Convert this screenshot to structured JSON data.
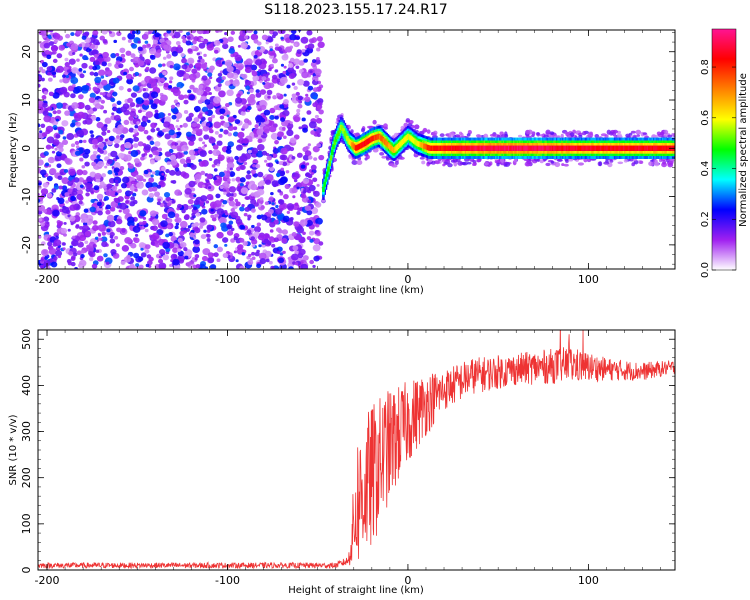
{
  "figure": {
    "title": "S118.2023.155.17.24.R17"
  },
  "chart_data": [
    {
      "type": "heatmap",
      "xlabel": "Height of straight line (km)",
      "ylabel": "Frequency (Hz)",
      "xlim": [
        -205,
        148
      ],
      "ylim": [
        -25,
        24.5
      ],
      "x_ticks": [
        -200,
        -100,
        0,
        100
      ],
      "y_ticks": [
        -20,
        -10,
        0,
        10,
        20
      ],
      "grid": false,
      "colorbar": {
        "label": "Normalized spectral amplitude",
        "range": [
          0,
          0.95
        ],
        "ticks": [
          "0.0",
          "0.2",
          "0.4",
          "0.6",
          "0.8"
        ],
        "tick_values": [
          0.0,
          0.2,
          0.4,
          0.6,
          0.8
        ],
        "colormap": [
          "#ffffff",
          "#a020f0",
          "#0000ff",
          "#00ffff",
          "#00ff00",
          "#ffff00",
          "#ff8000",
          "#ff0000",
          "#ff1493"
        ]
      },
      "regions": [
        {
          "x_range": [
            -205,
            -48
          ],
          "description_value": 0.2
        },
        {
          "x_range": [
            -48,
            148
          ],
          "center_frequency": 0.3
        }
      ],
      "ridge": [
        {
          "x": -47,
          "y": -8.5,
          "v": 0.45
        },
        {
          "x": -44,
          "y": -4.0,
          "v": 0.5
        },
        {
          "x": -41,
          "y": 1.0,
          "v": 0.5
        },
        {
          "x": -37,
          "y": 4.5,
          "v": 0.55
        },
        {
          "x": -33,
          "y": 1.5,
          "v": 0.55
        },
        {
          "x": -29,
          "y": 0.0,
          "v": 0.8
        },
        {
          "x": -24,
          "y": 1.0,
          "v": 0.85
        },
        {
          "x": -20,
          "y": 2.0,
          "v": 0.8
        },
        {
          "x": -16,
          "y": 2.5,
          "v": 0.75
        },
        {
          "x": -12,
          "y": 1.0,
          "v": 0.7
        },
        {
          "x": -8,
          "y": -0.5,
          "v": 0.65
        },
        {
          "x": -4,
          "y": 1.0,
          "v": 0.6
        },
        {
          "x": 0,
          "y": 2.5,
          "v": 0.6
        },
        {
          "x": 5,
          "y": 1.0,
          "v": 0.6
        },
        {
          "x": 12,
          "y": 0.0,
          "v": 0.8
        },
        {
          "x": 25,
          "y": 0.0,
          "v": 0.85
        },
        {
          "x": 45,
          "y": 0.0,
          "v": 0.9
        },
        {
          "x": 70,
          "y": 0.0,
          "v": 0.9
        },
        {
          "x": 95,
          "y": 0.0,
          "v": 0.85
        },
        {
          "x": 120,
          "y": 0.0,
          "v": 0.85
        },
        {
          "x": 148,
          "y": 0.0,
          "v": 0.85
        }
      ]
    },
    {
      "type": "line",
      "xlabel": "Height of straight line (km)",
      "ylabel": "SNR (10 * v/v)",
      "xlim": [
        -205,
        148
      ],
      "ylim": [
        0,
        520
      ],
      "x_ticks": [
        -200,
        -100,
        0,
        100
      ],
      "y_ticks": [
        0,
        100,
        200,
        300,
        400,
        500
      ],
      "grid": false,
      "series": [
        {
          "color": "#ee3333",
          "envelope": [
            {
              "x": -205,
              "mean": 10,
              "noise": 6
            },
            {
              "x": -40,
              "mean": 10,
              "noise": 6
            },
            {
              "x": -33,
              "mean": 20,
              "noise": 10
            },
            {
              "x": -28,
              "mean": 150,
              "noise": 150
            },
            {
              "x": -20,
              "mean": 200,
              "noise": 160
            },
            {
              "x": -12,
              "mean": 260,
              "noise": 130
            },
            {
              "x": 0,
              "mean": 320,
              "noise": 90
            },
            {
              "x": 10,
              "mean": 360,
              "noise": 70
            },
            {
              "x": 20,
              "mean": 390,
              "noise": 45
            },
            {
              "x": 35,
              "mean": 420,
              "noise": 40
            },
            {
              "x": 60,
              "mean": 435,
              "noise": 35
            },
            {
              "x": 90,
              "mean": 445,
              "noise": 40
            },
            {
              "x": 110,
              "mean": 435,
              "noise": 25
            },
            {
              "x": 130,
              "mean": 430,
              "noise": 20
            },
            {
              "x": 148,
              "mean": 440,
              "noise": 15
            }
          ]
        }
      ]
    }
  ]
}
